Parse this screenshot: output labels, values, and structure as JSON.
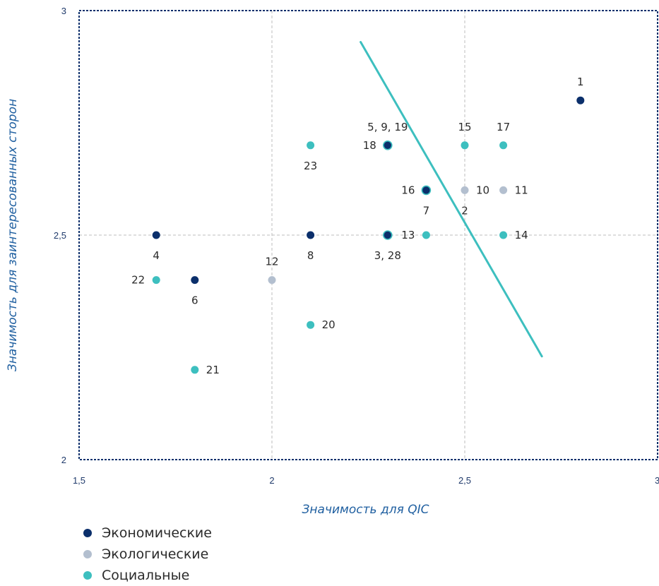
{
  "colors": {
    "economic": "#0b2f6b",
    "ecological": "#b3bfcf",
    "social": "#3dbfbf",
    "trend": "#3dbfbf",
    "frame": "#0b2f6b",
    "grid": "#bdbdbd"
  },
  "chart_data": {
    "type": "scatter",
    "xlabel": "Значимость для QIC",
    "ylabel": "Значимость для заинтересованных  сторон",
    "xlim": [
      1.5,
      3
    ],
    "ylim": [
      2,
      3
    ],
    "x_ticks": [
      "1,5",
      "2",
      "2,5",
      "3"
    ],
    "y_ticks": [
      "2",
      "2,5",
      "3"
    ],
    "grid": true,
    "legend_position": "bottom-left",
    "series": [
      {
        "name": "Экономические",
        "color_key": "economic",
        "points": [
          {
            "x": 2.8,
            "y": 2.8,
            "label": "1",
            "label_pos": "above"
          },
          {
            "x": 2.4,
            "y": 2.6,
            "label": "16",
            "label_pos": "left"
          },
          {
            "x": 2.3,
            "y": 2.7,
            "label": "18",
            "label_pos": "left"
          },
          {
            "x": 2.3,
            "y": 2.5,
            "label": "3, 28",
            "label_pos": "below"
          },
          {
            "x": 2.1,
            "y": 2.5,
            "label": "8",
            "label_pos": "below"
          },
          {
            "x": 1.7,
            "y": 2.5,
            "label": "4",
            "label_pos": "below"
          },
          {
            "x": 1.8,
            "y": 2.4,
            "label": "6",
            "label_pos": "below"
          }
        ]
      },
      {
        "name": "Экологические",
        "color_key": "ecological",
        "points": [
          {
            "x": 2.5,
            "y": 2.6,
            "label": "10",
            "label_pos": "right"
          },
          {
            "x": 2.6,
            "y": 2.6,
            "label": "11",
            "label_pos": "right"
          },
          {
            "x": 2.0,
            "y": 2.4,
            "label": "12",
            "label_pos": "above"
          }
        ]
      },
      {
        "name": "Социальные",
        "color_key": "social",
        "points": [
          {
            "x": 2.5,
            "y": 2.7,
            "label": "15",
            "label_pos": "above"
          },
          {
            "x": 2.6,
            "y": 2.7,
            "label": "17",
            "label_pos": "above"
          },
          {
            "x": 2.1,
            "y": 2.7,
            "label": "23",
            "label_pos": "below"
          },
          {
            "x": 2.4,
            "y": 2.5,
            "label": "13",
            "label_pos": "left"
          },
          {
            "x": 2.6,
            "y": 2.5,
            "label": "14",
            "label_pos": "right"
          },
          {
            "x": 1.7,
            "y": 2.4,
            "label": "22",
            "label_pos": "left"
          },
          {
            "x": 2.1,
            "y": 2.3,
            "label": "20",
            "label_pos": "right"
          },
          {
            "x": 1.8,
            "y": 2.2,
            "label": "21",
            "label_pos": "right"
          }
        ]
      }
    ],
    "extra_labels": [
      {
        "x": 2.3,
        "y": 2.7,
        "text": "5, 9, 19",
        "pos": "above"
      },
      {
        "x": 2.4,
        "y": 2.6,
        "text": "7",
        "pos": "below"
      },
      {
        "x": 2.5,
        "y": 2.6,
        "text": "2",
        "pos": "below"
      }
    ],
    "overlay_rings": [
      {
        "x": 2.3,
        "y": 2.7
      },
      {
        "x": 2.4,
        "y": 2.6
      },
      {
        "x": 2.3,
        "y": 2.5
      }
    ],
    "trend_line": {
      "x1": 2.23,
      "y1": 2.93,
      "x2": 2.7,
      "y2": 2.23
    }
  },
  "legend": [
    {
      "label": "Экономические",
      "color_key": "economic"
    },
    {
      "label": "Экологические",
      "color_key": "ecological"
    },
    {
      "label": "Социальные",
      "color_key": "social"
    }
  ]
}
